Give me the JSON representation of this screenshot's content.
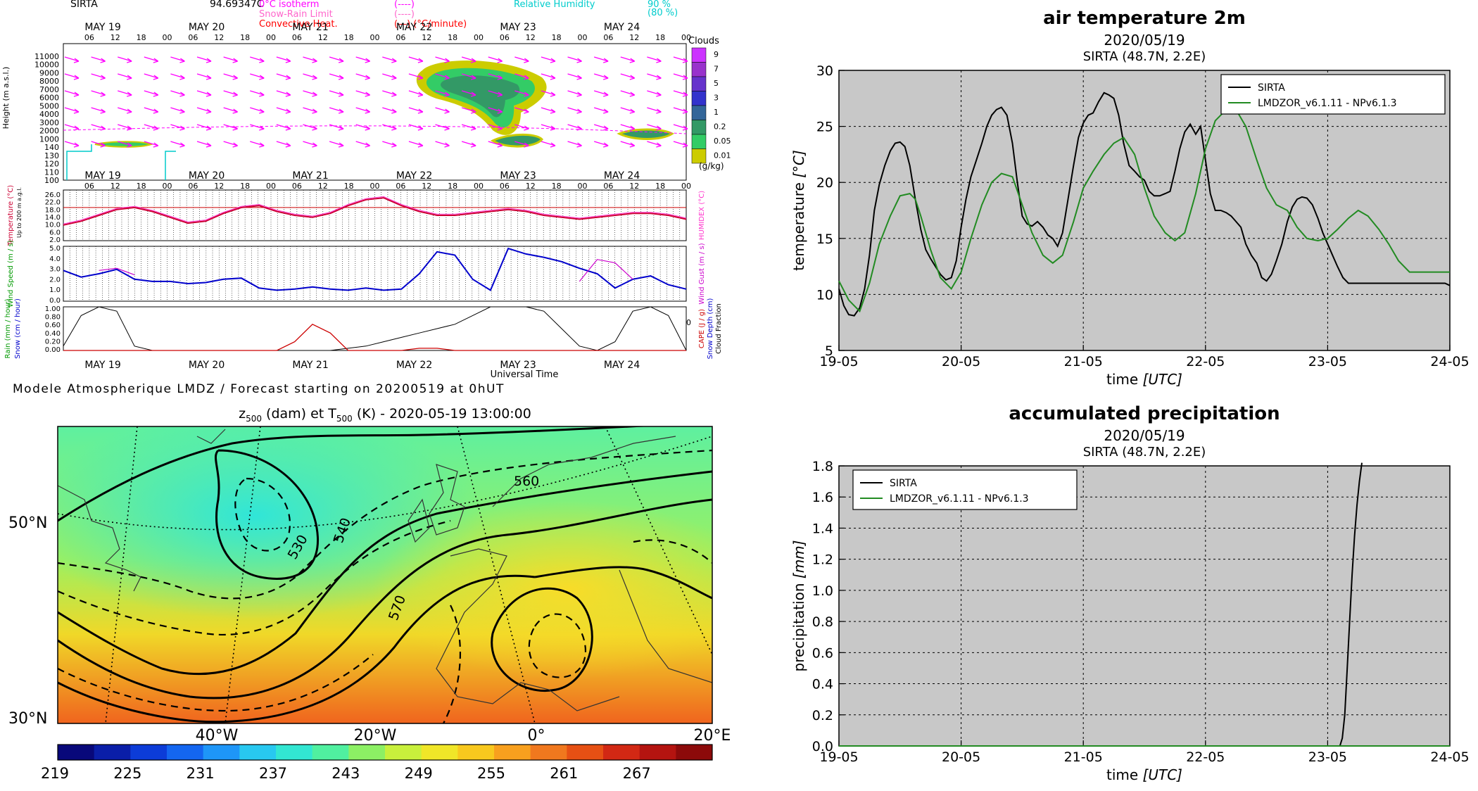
{
  "meteogram": {
    "station": "SIRTA",
    "station_value": "94.69347C",
    "legend_left": [
      {
        "label": "0°C isotherm",
        "style": "(----)",
        "color": "#ff00ff"
      },
      {
        "label": "Snow-Rain Limit",
        "style": "(----)",
        "color": "#ff66cc"
      },
      {
        "label": "Convective Heat.",
        "style": "(—) (°C/minute)",
        "color": "#ff0000"
      }
    ],
    "legend_right": [
      {
        "label": "Relative Humidity",
        "value": "90 %",
        "color": "#00cccc"
      },
      {
        "label": "",
        "value": "(80 %)",
        "color": "#00cccc"
      }
    ],
    "days": [
      "MAY 19",
      "MAY 20",
      "MAY 21",
      "MAY 22",
      "MAY 23",
      "MAY 24"
    ],
    "hours": [
      "06",
      "12",
      "18",
      "00"
    ],
    "clouds_title": "Clouds",
    "clouds_unit": "(g/kg)",
    "clouds_levels": [
      "9",
      "7",
      "5",
      "3",
      "1",
      "0.2",
      "0.05",
      "0.01"
    ],
    "clouds_colors": [
      "#cc33ff",
      "#9933cc",
      "#6633cc",
      "#3333cc",
      "#336699",
      "#339966",
      "#33cc66",
      "#cccc00"
    ],
    "height_label": "Height (m a.s.l.)",
    "height_ticks": [
      "11000",
      "10000",
      "9000",
      "8000",
      "7000",
      "6000",
      "5000",
      "4000",
      "3000",
      "2000",
      "1000",
      "140",
      "130",
      "120",
      "110",
      "100"
    ],
    "temp_label": "Temperature (°C)",
    "temp_sublabel": "Up to 200 m a.g.l.",
    "humidex_label": "HUMIDEX (°C)",
    "temp_ticks": [
      "26.0",
      "22.0",
      "18.0",
      "14.0",
      "10.0",
      "6.0",
      "2.0"
    ],
    "wind_label": "Wind Speed (m / s)",
    "gust_label": "Wind Gust (m / s)",
    "wind_ticks": [
      "5.0",
      "4.0",
      "3.0",
      "2.0",
      "1.0",
      "0.0"
    ],
    "precip_label_left": "Rain (mm / hour)",
    "precip_label_left2": "Snow (cm / hour)",
    "precip_label_right": "CAPE (J / g)",
    "precip_label_right2": "Snow Depth (cm)",
    "precip_label_right3": "Cloud Fraction",
    "precip_ticks": [
      "1.00",
      "0.80",
      "0.60",
      "0.40",
      "0.20",
      "0.00"
    ],
    "universal_time": "Universal Time",
    "footer": "Modele Atmospherique LMDZ / Forecast starting on 20200519 at 0hUT",
    "temp_series": [
      10,
      12,
      15,
      18,
      19,
      17,
      14,
      11,
      12,
      16,
      19,
      20,
      17,
      15,
      14,
      16,
      20,
      23,
      24,
      20,
      17,
      15,
      15,
      16,
      17,
      18,
      17,
      15,
      14,
      13,
      14,
      15,
      16,
      16,
      15,
      13
    ],
    "wind_series": [
      2.8,
      2.2,
      2.5,
      2.9,
      2.0,
      1.8,
      1.8,
      1.6,
      1.7,
      2.0,
      2.1,
      1.2,
      1.0,
      1.1,
      1.3,
      1.1,
      1.0,
      1.2,
      1.0,
      1.1,
      2.5,
      4.5,
      4.2,
      2.0,
      1.0,
      4.8,
      4.3,
      4.0,
      3.6,
      3.0,
      2.5,
      1.2,
      2.0,
      2.3,
      1.5,
      1.1
    ],
    "cloud_frac_series": [
      0.1,
      0.8,
      1.0,
      0.9,
      0.1,
      0.0,
      0.0,
      0.0,
      0.0,
      0.0,
      0.0,
      0.0,
      0.0,
      0.0,
      0.0,
      0.0,
      0.05,
      0.1,
      0.2,
      0.3,
      0.4,
      0.5,
      0.6,
      0.8,
      1.0,
      1.0,
      1.0,
      0.9,
      0.5,
      0.1,
      0.0,
      0.2,
      0.9,
      1.0,
      0.8,
      0.0
    ],
    "rain_series": [
      0,
      0,
      0,
      0,
      0,
      0,
      0,
      0,
      0,
      0,
      0,
      0,
      0,
      0.2,
      0.6,
      0.4,
      0,
      0,
      0,
      0,
      0.05,
      0.05,
      0,
      0,
      0,
      0,
      0,
      0,
      0,
      0,
      0,
      0,
      0,
      0,
      0,
      0
    ]
  },
  "map": {
    "title": "z500 (dam) et T500 (K) - 2020-05-19 13:00:00",
    "title_z": "z",
    "title_z_sub": "500",
    "title_mid": " (dam) et T",
    "title_t_sub": "500",
    "title_end": " (K) - 2020-05-19 13:00:00",
    "lat_labels": [
      "50°N",
      "30°N"
    ],
    "lon_labels": [
      "40°W",
      "20°W",
      "0°",
      "20°E"
    ],
    "contour_labels": [
      "560",
      "530",
      "540",
      "570"
    ],
    "colorbar_ticks": [
      "219",
      "225",
      "231",
      "237",
      "243",
      "249",
      "255",
      "261",
      "267"
    ],
    "colorbar_colors": [
      "#08087a",
      "#0a1ea8",
      "#0c3cd8",
      "#1466f0",
      "#1e96f8",
      "#28c8f0",
      "#32e6d2",
      "#50f0a0",
      "#8cf064",
      "#c8f03c",
      "#f0e628",
      "#f8c81e",
      "#f8a01e",
      "#f0781e",
      "#e65014",
      "#d22814",
      "#b41410",
      "#8c0a0a"
    ]
  },
  "chart_data": [
    {
      "type": "line",
      "title": "air temperature 2m",
      "subtitle": "2020/05/19",
      "subtitle2": "SIRTA (48.7N, 2.2E)",
      "xlabel": "time [UTC]",
      "xlabel_main": "time",
      "xlabel_unit": "[UTC]",
      "ylabel": "temperature [°C]",
      "ylabel_main": "temperature",
      "ylabel_unit": "[°C]",
      "xlim": [
        0,
        5
      ],
      "ylim": [
        5,
        30
      ],
      "x_ticks": [
        "19-05",
        "20-05",
        "21-05",
        "22-05",
        "23-05",
        "24-05"
      ],
      "y_ticks": [
        5,
        10,
        15,
        20,
        25,
        30
      ],
      "grid": true,
      "legend": "top-right",
      "series": [
        {
          "name": "SIRTA",
          "color": "#000000",
          "x": [
            0,
            0.04,
            0.08,
            0.125,
            0.17,
            0.21,
            0.25,
            0.29,
            0.33,
            0.375,
            0.42,
            0.46,
            0.5,
            0.54,
            0.58,
            0.625,
            0.67,
            0.71,
            0.75,
            0.79,
            0.83,
            0.875,
            0.92,
            0.96,
            1.0,
            1.04,
            1.08,
            1.125,
            1.17,
            1.21,
            1.25,
            1.29,
            1.33,
            1.375,
            1.42,
            1.46,
            1.5,
            1.54,
            1.58,
            1.625,
            1.67,
            1.71,
            1.75,
            1.79,
            1.83,
            1.875,
            1.92,
            1.96,
            2.0,
            2.04,
            2.08,
            2.125,
            2.17,
            2.21,
            2.25,
            2.29,
            2.33,
            2.375,
            2.42,
            2.46,
            2.5,
            2.54,
            2.58,
            2.625,
            2.67,
            2.71,
            2.75,
            2.79,
            2.83,
            2.875,
            2.92,
            2.96,
            3.0,
            3.04,
            3.08,
            3.125,
            3.17,
            3.21,
            3.25,
            3.29,
            3.33,
            3.375,
            3.42,
            3.46,
            3.5,
            3.54,
            3.58,
            3.625,
            3.67,
            3.71,
            3.75,
            3.79,
            3.83,
            3.875,
            3.92,
            3.96,
            4.0,
            4.04,
            4.08,
            4.125,
            4.17,
            4.21,
            4.25,
            4.29,
            4.33,
            4.375,
            4.42,
            4.46,
            4.5,
            4.54,
            4.58,
            4.625,
            4.67,
            4.71,
            4.75,
            4.79,
            4.83,
            4.875,
            4.92,
            4.96,
            5.0
          ],
          "y": [
            10.5,
            9.0,
            8.2,
            8.1,
            8.8,
            10.5,
            13.5,
            17.5,
            19.8,
            21.5,
            22.8,
            23.5,
            23.6,
            23.2,
            21.5,
            18.5,
            15.8,
            14.0,
            13.2,
            12.5,
            11.8,
            11.3,
            11.5,
            13.0,
            16.0,
            18.5,
            20.5,
            22.0,
            23.5,
            25.0,
            26.0,
            26.5,
            26.7,
            26.0,
            23.5,
            20.0,
            17.0,
            16.3,
            16.1,
            16.5,
            16.0,
            15.3,
            15.0,
            14.3,
            15.5,
            18.5,
            21.5,
            24.0,
            25.3,
            26.0,
            26.2,
            27.2,
            28.0,
            27.8,
            27.5,
            26.0,
            23.5,
            21.5,
            21.0,
            20.5,
            20.2,
            19.2,
            18.8,
            18.8,
            19.0,
            19.2,
            21.0,
            23.0,
            24.5,
            25.2,
            24.3,
            25.0,
            22.0,
            19.0,
            17.5,
            17.5,
            17.3,
            17.0,
            16.5,
            16.0,
            14.5,
            13.5,
            12.8,
            11.5,
            11.2,
            11.8,
            13.0,
            14.5,
            16.5,
            17.8,
            18.5,
            18.7,
            18.6,
            18.0,
            16.8,
            15.5,
            14.5,
            13.5,
            12.5,
            11.5,
            11.0,
            11.0,
            11.0,
            11.0,
            11.0,
            11.0,
            11.0,
            11.0,
            11.0,
            11.0,
            11.0,
            11.0,
            11.0,
            11.0,
            11.0,
            11.0,
            11.0,
            11.0,
            11.0,
            11.0,
            10.8
          ]
        },
        {
          "name": "LMDZOR_v6.1.11 - NPv6.1.3",
          "color": "#228b22",
          "x": [
            0,
            0.08,
            0.17,
            0.25,
            0.33,
            0.42,
            0.5,
            0.58,
            0.625,
            0.67,
            0.75,
            0.83,
            0.92,
            1.0,
            1.08,
            1.17,
            1.25,
            1.33,
            1.42,
            1.5,
            1.58,
            1.67,
            1.75,
            1.83,
            1.92,
            2.0,
            2.08,
            2.17,
            2.25,
            2.33,
            2.42,
            2.5,
            2.58,
            2.67,
            2.75,
            2.83,
            2.92,
            3.0,
            3.08,
            3.17,
            3.25,
            3.33,
            3.42,
            3.5,
            3.58,
            3.67,
            3.75,
            3.83,
            3.92,
            4.0,
            4.08,
            4.17,
            4.25,
            4.33,
            4.42,
            4.5,
            4.58,
            4.67,
            4.75,
            4.83,
            4.92,
            5.0
          ],
          "y": [
            11.2,
            9.5,
            8.5,
            11.0,
            14.5,
            17.0,
            18.8,
            19.0,
            18.5,
            17.0,
            14.0,
            11.5,
            10.5,
            12.0,
            15.0,
            18.0,
            20.0,
            20.8,
            20.5,
            18.0,
            15.5,
            13.5,
            12.8,
            13.5,
            16.5,
            19.5,
            21.0,
            22.5,
            23.5,
            24.0,
            22.5,
            19.5,
            17.0,
            15.5,
            14.8,
            15.5,
            19.0,
            23.0,
            25.5,
            26.5,
            26.5,
            25.0,
            22.0,
            19.5,
            18.0,
            17.5,
            16.0,
            15.0,
            14.8,
            15.0,
            15.8,
            16.8,
            17.5,
            17.0,
            15.8,
            14.5,
            13.0,
            12.0,
            12.0,
            12.0,
            12.0,
            12.0
          ]
        }
      ]
    },
    {
      "type": "line",
      "title": "accumulated precipitation",
      "subtitle": "2020/05/19",
      "subtitle2": "SIRTA (48.7N, 2.2E)",
      "xlabel": "time [UTC]",
      "xlabel_main": "time",
      "xlabel_unit": "[UTC]",
      "ylabel": "precipitation [mm]",
      "ylabel_main": "precipitation",
      "ylabel_unit": "[mm]",
      "xlim": [
        0,
        5
      ],
      "ylim": [
        0,
        1.8
      ],
      "x_ticks": [
        "19-05",
        "20-05",
        "21-05",
        "22-05",
        "23-05",
        "24-05"
      ],
      "y_ticks": [
        "0.0",
        "0.2",
        "0.4",
        "0.6",
        "0.8",
        "1.0",
        "1.2",
        "1.4",
        "1.6",
        "1.8"
      ],
      "grid": true,
      "legend": "top-left",
      "series": [
        {
          "name": "SIRTA",
          "color": "#000000",
          "x": [
            0,
            4.1,
            4.12,
            4.14,
            4.16,
            4.18,
            4.2,
            4.22,
            4.24,
            4.26,
            4.28
          ],
          "y": [
            0,
            0,
            0.05,
            0.2,
            0.5,
            0.8,
            1.1,
            1.35,
            1.55,
            1.7,
            1.82
          ]
        },
        {
          "name": "LMDZOR_v6.1.11 - NPv6.1.3",
          "color": "#228b22",
          "x": [
            0,
            5
          ],
          "y": [
            0,
            0
          ]
        }
      ]
    }
  ]
}
